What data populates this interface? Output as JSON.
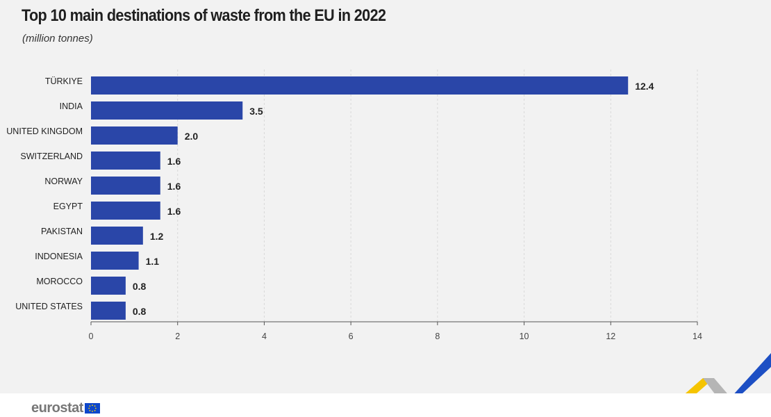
{
  "header": {
    "title": "Top 10 main destinations of waste from the EU in 2022",
    "subtitle": "(million tonnes)"
  },
  "footer": {
    "brand": "eurostat",
    "flag_icon": "eu-flag-icon"
  },
  "colors": {
    "bar": "#2a46a8",
    "gridline": "#d9d9d9",
    "axis": "#555555",
    "background": "#f2f2f2",
    "ribbon_yellow": "#f5c400",
    "ribbon_grey": "#b5b5b5",
    "ribbon_blue": "#1d4fc4"
  },
  "chart_data": {
    "type": "bar",
    "orientation": "horizontal",
    "title": "Top 10 main destinations of waste from the EU in 2022",
    "subtitle": "(million tonnes)",
    "categories": [
      "TÜRKIYE",
      "INDIA",
      "UNITED KINGDOM",
      "SWITZERLAND",
      "NORWAY",
      "EGYPT",
      "PAKISTAN",
      "INDONESIA",
      "MOROCCO",
      "UNITED STATES"
    ],
    "values": [
      12.4,
      3.5,
      2.0,
      1.6,
      1.6,
      1.6,
      1.2,
      1.1,
      0.8,
      0.8
    ],
    "value_labels": [
      "12.4",
      "3.5",
      "2.0",
      "1.6",
      "1.6",
      "1.6",
      "1.2",
      "1.1",
      "0.8",
      "0.8"
    ],
    "xlim": [
      0,
      14
    ],
    "xticks": [
      0,
      2,
      4,
      6,
      8,
      10,
      12,
      14
    ],
    "grid": "vertical dashed",
    "legend": "none"
  }
}
